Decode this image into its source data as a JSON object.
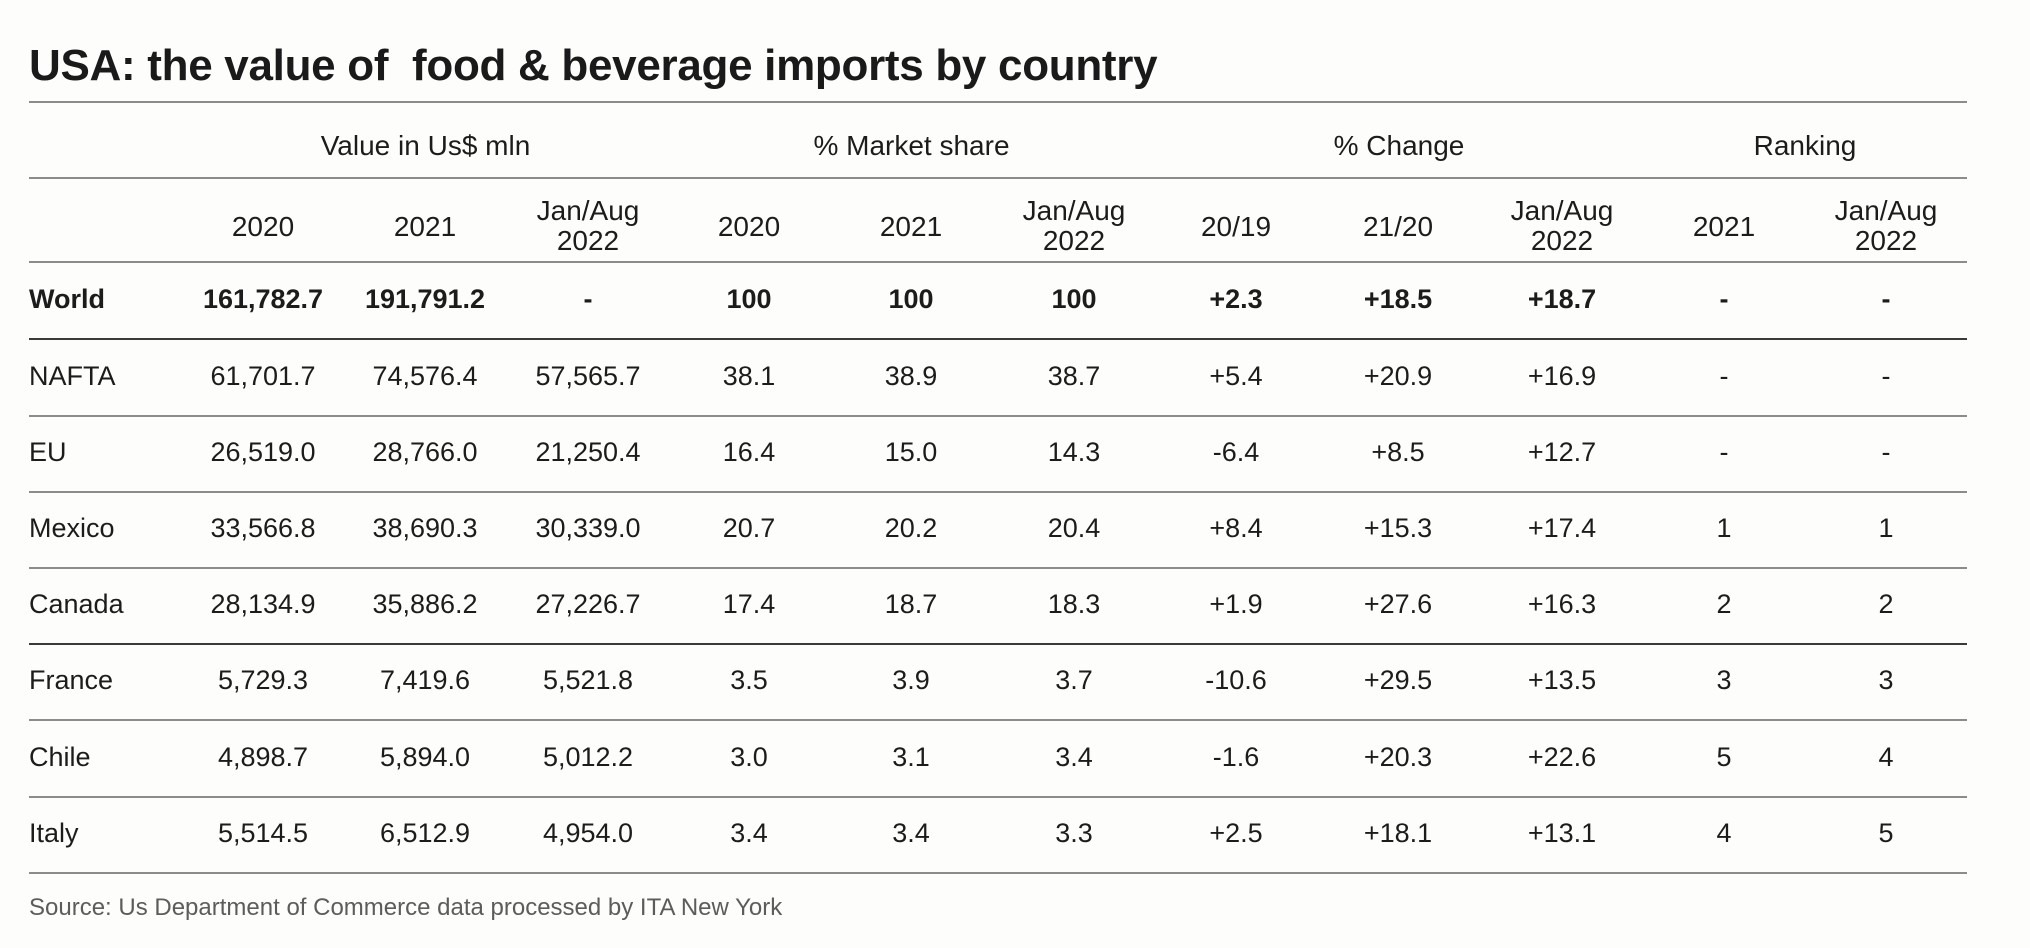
{
  "title": "USA: the value of  food & beverage imports by country",
  "table": {
    "group_headers": [
      {
        "label": "Value in Us$ mln",
        "span": [
          1,
          3
        ]
      },
      {
        "label": "% Market share",
        "span": [
          4,
          6
        ]
      },
      {
        "label": "% Change",
        "span": [
          7,
          9
        ]
      },
      {
        "label": "Ranking",
        "span": [
          10,
          11
        ]
      }
    ],
    "columns": [
      {
        "line1": "",
        "line2": ""
      },
      {
        "line1": "",
        "line2": "2020"
      },
      {
        "line1": "",
        "line2": "2021"
      },
      {
        "line1": "Jan/Aug",
        "line2": "2022"
      },
      {
        "line1": "",
        "line2": "2020"
      },
      {
        "line1": "",
        "line2": "2021"
      },
      {
        "line1": "Jan/Aug",
        "line2": "2022"
      },
      {
        "line1": "",
        "line2": "20/19"
      },
      {
        "line1": "",
        "line2": "21/20"
      },
      {
        "line1": "Jan/Aug",
        "line2": "2022"
      },
      {
        "line1": "",
        "line2": "2021"
      },
      {
        "line1": "Jan/Aug",
        "line2": "2022"
      }
    ],
    "rows": [
      {
        "bold": true,
        "cells": [
          "World",
          "161,782.7",
          "191,791.2",
          "-",
          "100",
          "100",
          "100",
          "+2.3",
          "+18.5",
          "+18.7",
          "-",
          "-"
        ]
      },
      {
        "bold": false,
        "cells": [
          "NAFTA",
          "61,701.7",
          "74,576.4",
          "57,565.7",
          "38.1",
          "38.9",
          "38.7",
          "+5.4",
          "+20.9",
          "+16.9",
          "-",
          "-"
        ]
      },
      {
        "bold": false,
        "cells": [
          "EU",
          "26,519.0",
          "28,766.0",
          "21,250.4",
          "16.4",
          "15.0",
          "14.3",
          "-6.4",
          "+8.5",
          "+12.7",
          "-",
          "-"
        ]
      },
      {
        "bold": false,
        "cells": [
          "Mexico",
          "33,566.8",
          "38,690.3",
          "30,339.0",
          "20.7",
          "20.2",
          "20.4",
          "+8.4",
          "+15.3",
          "+17.4",
          "1",
          "1"
        ]
      },
      {
        "bold": false,
        "cells": [
          "Canada",
          "28,134.9",
          "35,886.2",
          "27,226.7",
          "17.4",
          "18.7",
          "18.3",
          "+1.9",
          "+27.6",
          "+16.3",
          "2",
          "2"
        ]
      },
      {
        "bold": false,
        "cells": [
          "France",
          "5,729.3",
          "7,419.6",
          "5,521.8",
          "3.5",
          "3.9",
          "3.7",
          "-10.6",
          "+29.5",
          "+13.5",
          "3",
          "3"
        ]
      },
      {
        "bold": false,
        "cells": [
          "Chile",
          "4,898.7",
          "5,894.0",
          "5,012.2",
          "3.0",
          "3.1",
          "3.4",
          "-1.6",
          "+20.3",
          "+22.6",
          "5",
          "4"
        ]
      },
      {
        "bold": false,
        "cells": [
          "Italy",
          "5,514.5",
          "6,512.9",
          "4,954.0",
          "3.4",
          "3.4",
          "3.3",
          "+2.5",
          "+18.1",
          "+13.1",
          "4",
          "5"
        ]
      }
    ]
  },
  "source": "Source: Us Department of Commerce data processed by ITA New York"
}
